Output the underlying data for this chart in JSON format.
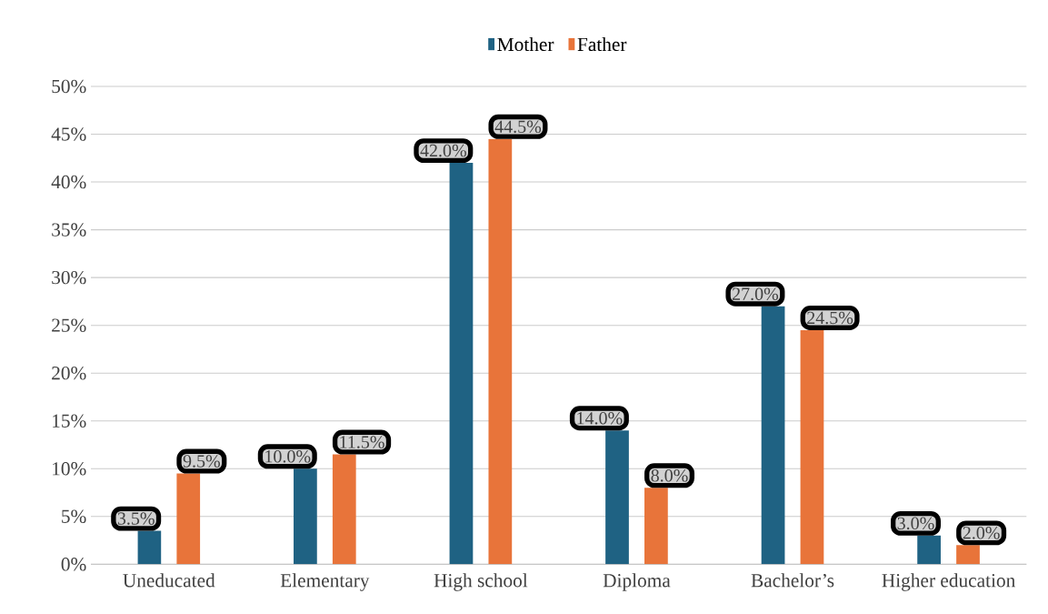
{
  "chart_data": {
    "type": "bar",
    "categories": [
      "Uneducated",
      "Elementary",
      "High school",
      "Diploma",
      "Bachelor’s",
      "Higher education"
    ],
    "series": [
      {
        "name": "Mother",
        "color": "#1f6283",
        "values": [
          3.5,
          10.0,
          42.0,
          14.0,
          27.0,
          3.0
        ],
        "value_labels": [
          "3.5%",
          "10.0%",
          "42.0%",
          "14.0%",
          "27.0%",
          "3.0%"
        ]
      },
      {
        "name": "Father",
        "color": "#e8743a",
        "values": [
          9.5,
          11.5,
          44.5,
          8.0,
          24.5,
          2.0
        ],
        "value_labels": [
          "9.5%",
          "11.5%",
          "44.5%",
          "8.0%",
          "24.5%",
          "2.0%"
        ]
      }
    ],
    "ylim": [
      0,
      50
    ],
    "yticks": [
      {
        "value": 0,
        "label": "0%"
      },
      {
        "value": 5,
        "label": "5%"
      },
      {
        "value": 10,
        "label": "10%"
      },
      {
        "value": 15,
        "label": "15%"
      },
      {
        "value": 20,
        "label": "20%"
      },
      {
        "value": 25,
        "label": "25%"
      },
      {
        "value": 30,
        "label": "30%"
      },
      {
        "value": 35,
        "label": "35%"
      },
      {
        "value": 40,
        "label": "40%"
      },
      {
        "value": 45,
        "label": "45%"
      },
      {
        "value": 50,
        "label": "50%"
      }
    ],
    "grid": "y",
    "legend": "top"
  }
}
